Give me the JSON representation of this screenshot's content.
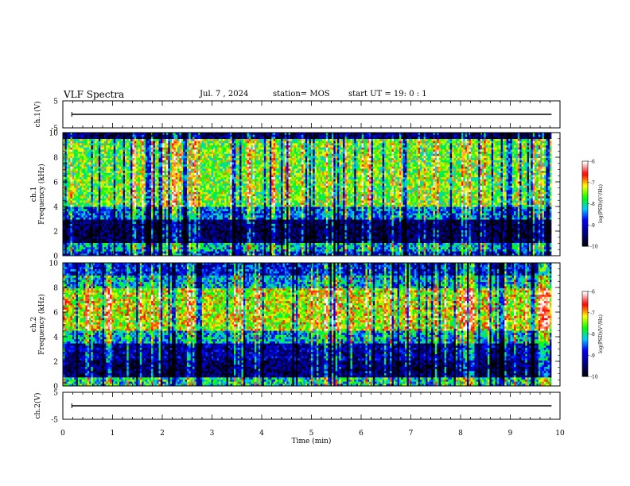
{
  "header": {
    "title": "VLF Spectra",
    "date": "Jul. 7 , 2024",
    "station": "station= MOS",
    "start": "start UT = 19: 0 : 1"
  },
  "chart_data": [
    {
      "type": "line",
      "title": "",
      "ylabel": "ch.1(V)",
      "xlim": [
        0,
        10
      ],
      "ylim": [
        -5,
        5
      ],
      "yticks": [
        "5",
        "-5"
      ],
      "series": [
        {
          "values": [
            0,
            0
          ]
        }
      ],
      "note_x_range": [
        0,
        9.83
      ]
    },
    {
      "type": "heatmap",
      "ylabel": "ch.1\nFrequency (kHz)",
      "ylim": [
        0,
        10
      ],
      "yticks": [
        "0",
        "2",
        "4",
        "6",
        "8",
        "10"
      ],
      "xlim": [
        0,
        10
      ],
      "data_x_range": [
        0,
        9.83
      ],
      "colorbar": {
        "label": "log(PSD)(V²/Hz)",
        "range": [
          -10,
          -6
        ],
        "ticks": [
          "-6",
          "-7",
          "-8",
          "-9",
          "-10"
        ]
      }
    },
    {
      "type": "heatmap",
      "ylabel": "ch.2\nFrequency (kHz)",
      "ylim": [
        0,
        10
      ],
      "yticks": [
        "0",
        "2",
        "4",
        "6",
        "8",
        "10"
      ],
      "xlim": [
        0,
        10
      ],
      "data_x_range": [
        0,
        9.83
      ],
      "colorbar": {
        "label": "log(PSD)(V²/Hz)",
        "range": [
          -10,
          -6
        ],
        "ticks": [
          "-6",
          "-7",
          "-8",
          "-9",
          "-10"
        ]
      }
    },
    {
      "type": "line",
      "ylabel": "ch.2(V)",
      "xlim": [
        0,
        10
      ],
      "ylim": [
        -5,
        5
      ],
      "yticks": [
        "5",
        "-5"
      ],
      "series": [
        {
          "values": [
            0,
            0
          ]
        }
      ]
    }
  ],
  "xaxis": {
    "label": "Time (min)",
    "ticks": [
      "0",
      "1",
      "2",
      "3",
      "4",
      "5",
      "6",
      "7",
      "8",
      "9",
      "10"
    ]
  },
  "colors": {
    "colormap": [
      "#ffffff",
      "#ff0000",
      "#ffff00",
      "#00ff00",
      "#00ffff",
      "#0000ff",
      "#000000"
    ]
  }
}
